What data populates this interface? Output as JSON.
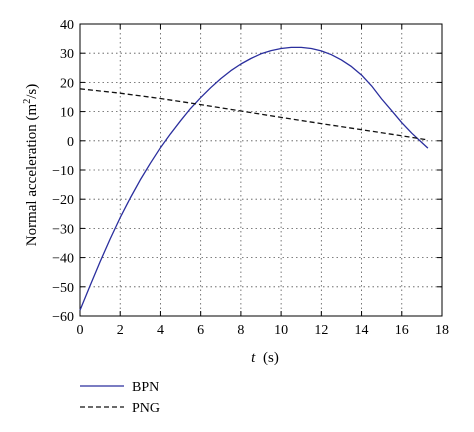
{
  "chart_data": {
    "type": "line",
    "xlabel_italic": "t",
    "xlabel_unit": "(s)",
    "ylabel_main": "Normal acceleration (m",
    "ylabel_sup": "2",
    "ylabel_end": "/s)",
    "xlim": [
      0,
      18
    ],
    "ylim": [
      -60,
      40
    ],
    "x_ticks": [
      0,
      2,
      4,
      6,
      8,
      10,
      12,
      14,
      16,
      18
    ],
    "y_ticks": [
      40,
      30,
      20,
      10,
      0,
      -10,
      -20,
      -30,
      -40,
      -50,
      -60
    ],
    "x_tick_labels": [
      "0",
      "2",
      "4",
      "6",
      "8",
      "10",
      "12",
      "14",
      "16",
      "18"
    ],
    "y_tick_labels": [
      "40",
      "30",
      "20",
      "10",
      "0",
      "−10",
      "−20",
      "−30",
      "−40",
      "−50",
      "−60"
    ],
    "grid": true,
    "legend_position": "bottom-left, below plot",
    "series": [
      {
        "name": "BPN",
        "color": "#2b2f9e",
        "style": "solid",
        "x": [
          0,
          0.5,
          1,
          1.5,
          2,
          2.5,
          3,
          3.5,
          4,
          4.5,
          5,
          5.5,
          6,
          6.5,
          7,
          7.5,
          8,
          8.5,
          9,
          9.5,
          10,
          10.5,
          11,
          11.5,
          12,
          12.5,
          13,
          13.5,
          14,
          14.5,
          15,
          15.5,
          16,
          16.5,
          17,
          17.3
        ],
        "y": [
          -58.0,
          -49.6,
          -41.4,
          -33.6,
          -26.3,
          -19.6,
          -13.4,
          -7.7,
          -2.4,
          2.4,
          6.9,
          11.1,
          14.8,
          18.2,
          21.3,
          24.0,
          26.3,
          28.2,
          29.8,
          30.9,
          31.6,
          32.0,
          32.0,
          31.6,
          30.8,
          29.5,
          27.7,
          25.4,
          22.5,
          18.8,
          14.3,
          10.3,
          6.2,
          2.6,
          -0.6,
          -2.5
        ]
      },
      {
        "name": "PNG",
        "color": "#111111",
        "style": "dashed",
        "x": [
          0,
          2,
          4,
          6,
          8,
          10,
          12,
          14,
          16,
          17.3
        ],
        "y": [
          17.8,
          16.3,
          14.5,
          12.4,
          10.2,
          8.0,
          5.9,
          3.8,
          1.7,
          0.3
        ]
      }
    ]
  },
  "legend": {
    "items": [
      {
        "label": "BPN",
        "color": "#2b2f9e",
        "dashed": false
      },
      {
        "label": "PNG",
        "color": "#111111",
        "dashed": true
      }
    ]
  }
}
